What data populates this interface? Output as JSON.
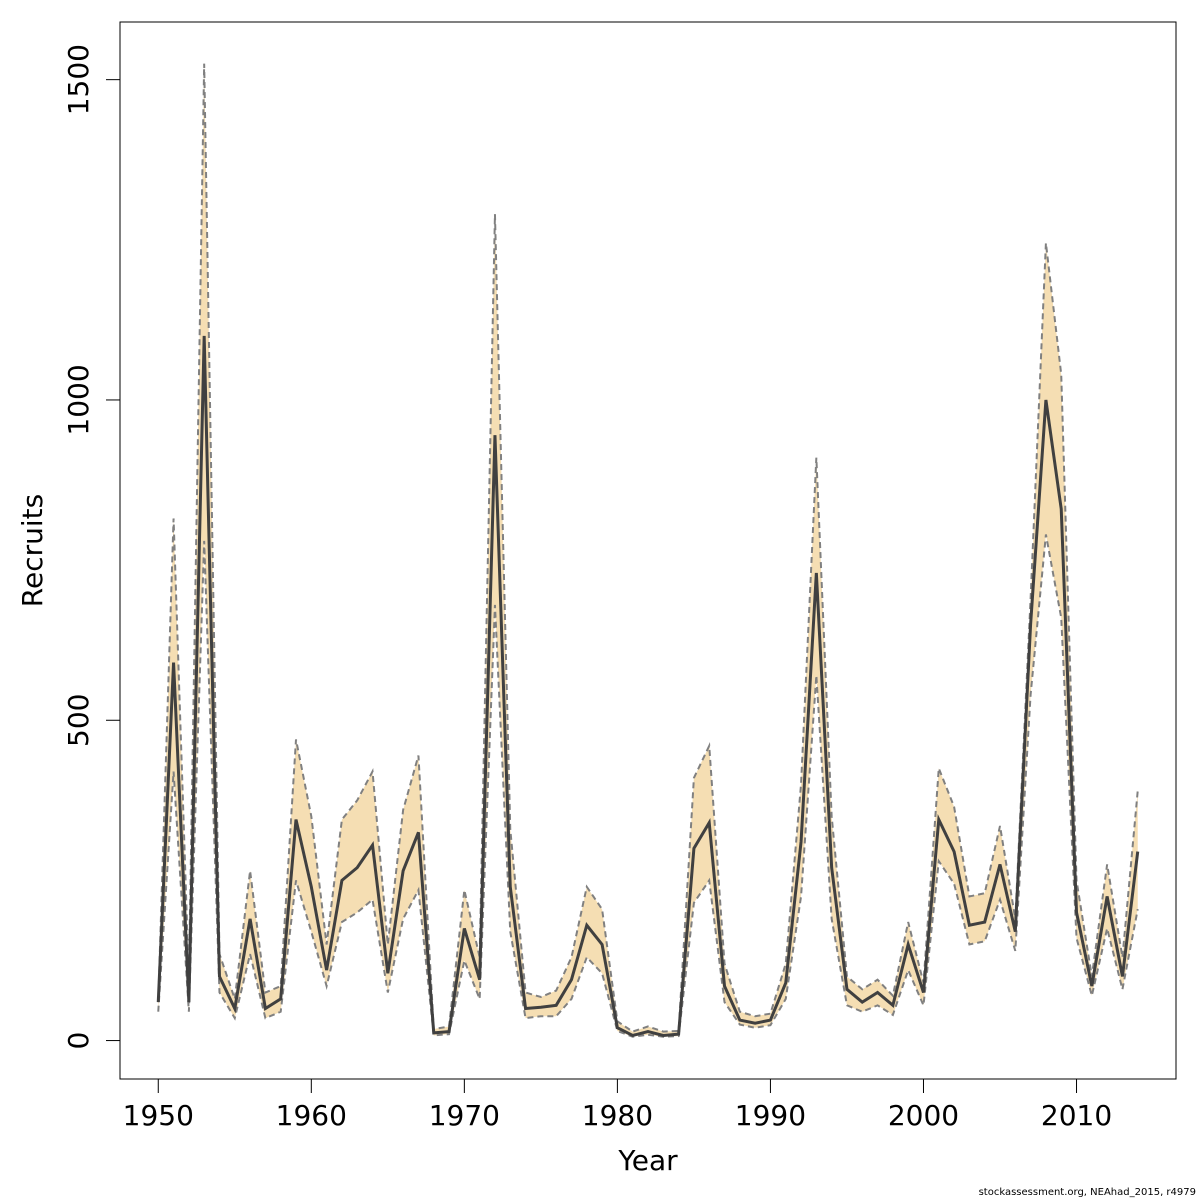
{
  "chart_data": {
    "type": "line",
    "xlabel": "Year",
    "ylabel": "Recruits",
    "xlim": [
      1947.5,
      2016.5
    ],
    "ylim": [
      -60,
      1590
    ],
    "x_ticks": [
      1950,
      1960,
      1970,
      1980,
      1990,
      2000,
      2010
    ],
    "y_ticks": [
      0,
      500,
      1000,
      1500
    ],
    "band_color": "#f5deb3",
    "band_edge_color": "#808080",
    "line_color": "#404040",
    "grid": false,
    "x": [
      1950,
      1951,
      1952,
      1953,
      1954,
      1955,
      1956,
      1957,
      1958,
      1959,
      1960,
      1961,
      1962,
      1963,
      1964,
      1965,
      1966,
      1967,
      1968,
      1969,
      1970,
      1971,
      1972,
      1973,
      1974,
      1975,
      1976,
      1977,
      1978,
      1979,
      1980,
      1981,
      1982,
      1983,
      1984,
      1985,
      1986,
      1987,
      1988,
      1989,
      1990,
      1991,
      1992,
      1993,
      1994,
      1995,
      1996,
      1997,
      1998,
      1999,
      2000,
      2001,
      2002,
      2003,
      2004,
      2005,
      2006,
      2007,
      2008,
      2009,
      2010,
      2011,
      2012,
      2013,
      2014
    ],
    "series": [
      {
        "name": "estimate",
        "values": [
          60,
          590,
          60,
          1100,
          100,
          50,
          190,
          50,
          65,
          345,
          240,
          110,
          250,
          270,
          305,
          105,
          265,
          325,
          12,
          14,
          175,
          95,
          945,
          240,
          50,
          52,
          55,
          95,
          180,
          150,
          20,
          8,
          14,
          8,
          10,
          300,
          340,
          85,
          32,
          27,
          32,
          90,
          310,
          730,
          270,
          80,
          60,
          75,
          55,
          150,
          75,
          345,
          295,
          180,
          185,
          275,
          170,
          650,
          1000,
          830,
          200,
          85,
          225,
          100,
          295
        ]
      },
      {
        "name": "upper",
        "values": [
          60,
          815,
          95,
          1525,
          135,
          65,
          265,
          75,
          85,
          470,
          350,
          150,
          345,
          375,
          420,
          150,
          360,
          445,
          18,
          22,
          235,
          130,
          1290,
          330,
          75,
          68,
          78,
          130,
          240,
          205,
          30,
          14,
          22,
          14,
          15,
          410,
          460,
          120,
          45,
          38,
          42,
          120,
          400,
          910,
          350,
          100,
          80,
          95,
          70,
          185,
          90,
          425,
          365,
          225,
          230,
          335,
          190,
          690,
          1245,
          1040,
          250,
          100,
          275,
          130,
          390
        ]
      },
      {
        "name": "lower",
        "values": [
          45,
          420,
          45,
          780,
          75,
          35,
          135,
          35,
          45,
          250,
          170,
          85,
          185,
          200,
          220,
          75,
          190,
          235,
          8,
          10,
          125,
          65,
          680,
          170,
          35,
          38,
          38,
          65,
          130,
          105,
          15,
          6,
          9,
          6,
          7,
          215,
          250,
          60,
          25,
          20,
          24,
          65,
          225,
          570,
          190,
          55,
          45,
          55,
          40,
          110,
          55,
          280,
          245,
          150,
          155,
          220,
          140,
          540,
          790,
          660,
          160,
          70,
          175,
          80,
          205
        ]
      }
    ]
  },
  "footnote": "stockassessment.org, NEAhad_2015, r4979"
}
